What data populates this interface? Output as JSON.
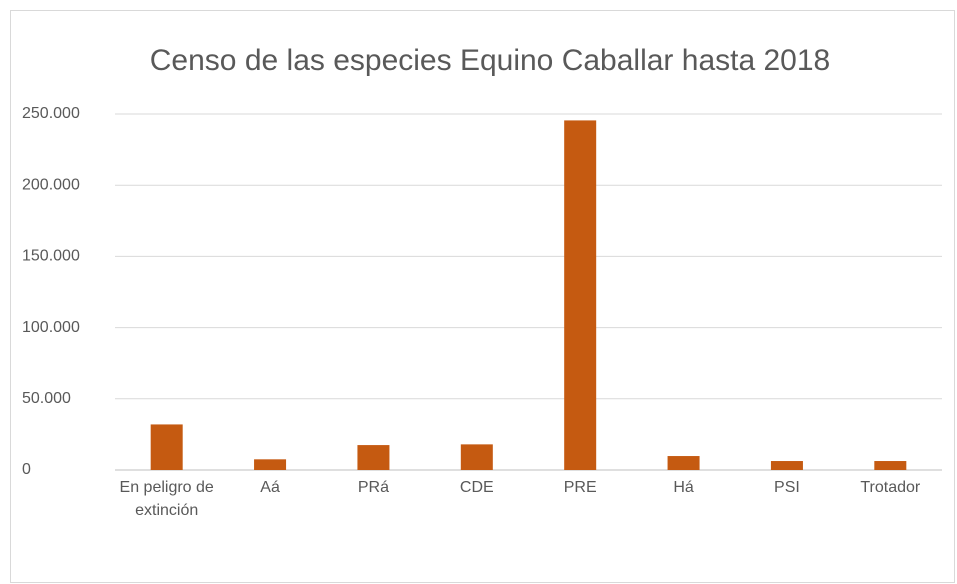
{
  "chart_data": {
    "type": "bar",
    "title": "Censo de las especies Equino Caballar hasta 2018",
    "categories": [
      "En peligro de extinción",
      "Aá",
      "PRá",
      "CDE",
      "PRE",
      "Há",
      "PSI",
      "Trotador"
    ],
    "values": [
      32000,
      7500,
      17500,
      18000,
      245500,
      9800,
      6300,
      6300
    ],
    "color": "#c55a11",
    "ylim": [
      0,
      250000
    ],
    "yticks": [
      0,
      {
        "value": 50000,
        "label": "50.000"
      },
      {
        "value": 100000,
        "label": "100.000"
      },
      {
        "value": 150000,
        "label": "150.000"
      },
      {
        "value": 200000,
        "label": "200.000"
      },
      {
        "value": 250000,
        "label": "250.000"
      }
    ],
    "grid": true
  }
}
